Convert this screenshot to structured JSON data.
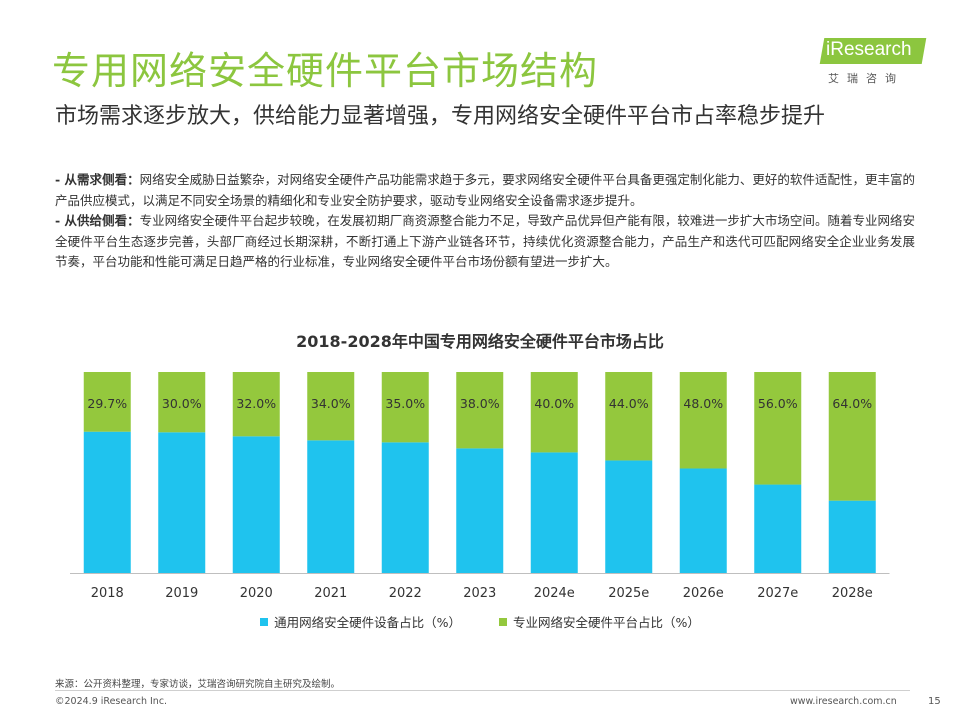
{
  "header": {
    "title": "专用网络安全硬件平台市场结构",
    "logo_text": "iResearch",
    "logo_sub": "艾瑞咨询"
  },
  "subtitle": "市场需求逐步放大，供给能力显著增强，专用网络安全硬件平台市占率稳步提升",
  "bullets": [
    {
      "label": "- 从需求侧看：",
      "text": "网络安全威胁日益繁杂，对网络安全硬件产品功能需求趋于多元，要求网络安全硬件平台具备更强定制化能力、更好的软件适配性，更丰富的产品供应模式，以满足不同安全场景的精细化和专业安全防护要求，驱动专业网络安全设备需求逐步提升。"
    },
    {
      "label": "- 从供给侧看：",
      "text": "专业网络安全硬件平台起步较晚，在发展初期厂商资源整合能力不足，导致产品优异但产能有限，较难进一步扩大市场空间。随着专业网络安全硬件平台生态逐步完善，头部厂商经过长期深耕，不断打通上下游产业链各环节，持续优化资源整合能力，产品生产和迭代可匹配网络安全企业业务发展节奏，平台功能和性能可满足日趋严格的行业标准，专业网络安全硬件平台市场份额有望进一步扩大。"
    }
  ],
  "chart_data": {
    "type": "bar",
    "stacked": true,
    "title": "2018-2028年中国专用网络安全硬件平台市场占比",
    "categories": [
      "2018",
      "2019",
      "2020",
      "2021",
      "2022",
      "2023",
      "2024e",
      "2025e",
      "2026e",
      "2027e",
      "2028e"
    ],
    "series": [
      {
        "name": "通用网络安全硬件设备占比（%）",
        "color": "#1fc3ee",
        "values": [
          70.3,
          70.0,
          68.0,
          66.0,
          65.0,
          62.0,
          60.0,
          56.0,
          52.0,
          44.0,
          36.0
        ]
      },
      {
        "name": "专业网络安全硬件平台占比（%）",
        "color": "#94c83d",
        "values": [
          29.7,
          30.0,
          32.0,
          34.0,
          35.0,
          38.0,
          40.0,
          44.0,
          48.0,
          56.0,
          64.0
        ],
        "labels": [
          "29.7%",
          "30.0%",
          "32.0%",
          "34.0%",
          "35.0%",
          "38.0%",
          "40.0%",
          "44.0%",
          "48.0%",
          "56.0%",
          "64.0%"
        ]
      }
    ],
    "ylim": [
      0,
      100
    ],
    "grid": false,
    "legend": "bottom"
  },
  "footer": {
    "source": "来源：公开资料整理，专家访谈，艾瑞咨询研究院自主研究及绘制。",
    "copyright": "©2024.9 iResearch Inc.",
    "website": "www.iresearch.com.cn",
    "page": "15"
  }
}
